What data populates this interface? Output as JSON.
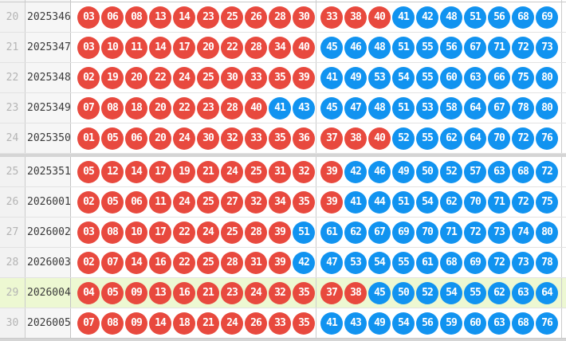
{
  "colors": {
    "red_ball": "#e8493e",
    "blue_ball": "#1193f0",
    "highlight_row": "#edf8d2",
    "index_col_bg": "#f2f2f2",
    "period_col_bg": "#f6f6f6"
  },
  "rules": {
    "red_max": 40,
    "balls_per_group": 10
  },
  "rows": [
    {
      "no": "20",
      "period": "2025346",
      "balls_left": [
        "03",
        "06",
        "08",
        "13",
        "14",
        "23",
        "25",
        "26",
        "28",
        "30"
      ],
      "balls_right": [
        "33",
        "38",
        "40",
        "41",
        "42",
        "48",
        "51",
        "56",
        "68",
        "69"
      ],
      "highlight": false,
      "section_end": false
    },
    {
      "no": "21",
      "period": "2025347",
      "balls_left": [
        "03",
        "10",
        "11",
        "14",
        "17",
        "20",
        "22",
        "28",
        "34",
        "40"
      ],
      "balls_right": [
        "45",
        "46",
        "48",
        "51",
        "55",
        "56",
        "67",
        "71",
        "72",
        "73"
      ],
      "highlight": false,
      "section_end": false
    },
    {
      "no": "22",
      "period": "2025348",
      "balls_left": [
        "02",
        "19",
        "20",
        "22",
        "24",
        "25",
        "30",
        "33",
        "35",
        "39"
      ],
      "balls_right": [
        "41",
        "49",
        "53",
        "54",
        "55",
        "60",
        "63",
        "66",
        "75",
        "80"
      ],
      "highlight": false,
      "section_end": false
    },
    {
      "no": "23",
      "period": "2025349",
      "balls_left": [
        "07",
        "08",
        "18",
        "20",
        "22",
        "23",
        "28",
        "40",
        "41",
        "43"
      ],
      "balls_right": [
        "45",
        "47",
        "48",
        "51",
        "53",
        "58",
        "64",
        "67",
        "78",
        "80"
      ],
      "highlight": false,
      "section_end": false
    },
    {
      "no": "24",
      "period": "2025350",
      "balls_left": [
        "01",
        "05",
        "06",
        "20",
        "24",
        "30",
        "32",
        "33",
        "35",
        "36"
      ],
      "balls_right": [
        "37",
        "38",
        "40",
        "52",
        "55",
        "62",
        "64",
        "70",
        "72",
        "76"
      ],
      "highlight": false,
      "section_end": true
    },
    {
      "no": "25",
      "period": "2025351",
      "balls_left": [
        "05",
        "12",
        "14",
        "17",
        "19",
        "21",
        "24",
        "25",
        "31",
        "32"
      ],
      "balls_right": [
        "39",
        "42",
        "46",
        "49",
        "50",
        "52",
        "57",
        "63",
        "68",
        "72"
      ],
      "highlight": false,
      "section_end": false
    },
    {
      "no": "26",
      "period": "2026001",
      "balls_left": [
        "02",
        "05",
        "06",
        "11",
        "24",
        "25",
        "27",
        "32",
        "34",
        "35"
      ],
      "balls_right": [
        "39",
        "41",
        "44",
        "51",
        "54",
        "62",
        "70",
        "71",
        "72",
        "75"
      ],
      "highlight": false,
      "section_end": false
    },
    {
      "no": "27",
      "period": "2026002",
      "balls_left": [
        "03",
        "08",
        "10",
        "17",
        "22",
        "24",
        "25",
        "28",
        "39",
        "51"
      ],
      "balls_right": [
        "61",
        "62",
        "67",
        "69",
        "70",
        "71",
        "72",
        "73",
        "74",
        "80"
      ],
      "highlight": false,
      "section_end": false
    },
    {
      "no": "28",
      "period": "2026003",
      "balls_left": [
        "02",
        "07",
        "14",
        "16",
        "22",
        "25",
        "28",
        "31",
        "39",
        "42"
      ],
      "balls_right": [
        "47",
        "53",
        "54",
        "55",
        "61",
        "68",
        "69",
        "72",
        "73",
        "78"
      ],
      "highlight": false,
      "section_end": false
    },
    {
      "no": "29",
      "period": "2026004",
      "balls_left": [
        "04",
        "05",
        "09",
        "13",
        "16",
        "21",
        "23",
        "24",
        "32",
        "35"
      ],
      "balls_right": [
        "37",
        "38",
        "45",
        "50",
        "52",
        "54",
        "55",
        "62",
        "63",
        "64"
      ],
      "highlight": true,
      "section_end": false
    },
    {
      "no": "30",
      "period": "2026005",
      "balls_left": [
        "07",
        "08",
        "09",
        "14",
        "18",
        "21",
        "24",
        "26",
        "33",
        "35"
      ],
      "balls_right": [
        "41",
        "43",
        "49",
        "54",
        "56",
        "59",
        "60",
        "63",
        "68",
        "76"
      ],
      "highlight": false,
      "section_end": false
    }
  ]
}
